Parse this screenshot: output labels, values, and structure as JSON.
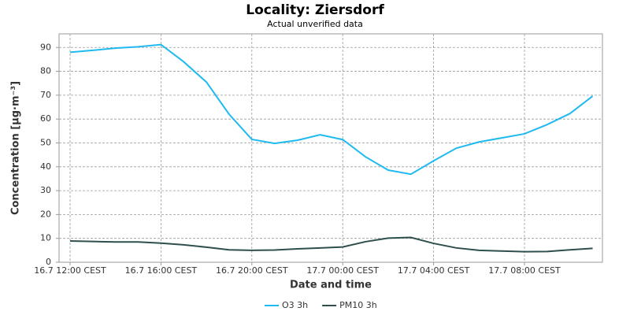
{
  "chart_data": {
    "type": "line",
    "title": "Locality: Ziersdorf",
    "subtitle": "Actual unverified data",
    "x_label": "Date and time",
    "y_label": "Concentration [µg·m⁻³]",
    "categories": [
      "16.7 12:00 CEST",
      null,
      null,
      null,
      "16.7 16:00 CEST",
      null,
      null,
      null,
      "16.7 20:00 CEST",
      null,
      null,
      null,
      "17.7 00:00 CEST",
      null,
      null,
      null,
      "17.7 04:00 CEST",
      null,
      null,
      null,
      "17.7 08:00 CEST",
      null,
      null,
      null
    ],
    "series": [
      {
        "name": "O3 3h",
        "color": "#1fbaf0",
        "values": [
          88,
          88.8,
          89.7,
          90.3,
          91.2,
          84,
          75.5,
          62,
          51.5,
          49.8,
          51.1,
          53.4,
          51.4,
          44.2,
          38.6,
          36.9,
          42.5,
          47.8,
          50.4,
          52.1,
          53.8,
          57.7,
          62.3,
          69.6
        ]
      },
      {
        "name": "PM10 3h",
        "color": "#2f4f4f",
        "values": [
          8.9,
          8.7,
          8.5,
          8.5,
          8,
          7.3,
          6.3,
          5.2,
          5,
          5.1,
          5.6,
          6,
          6.4,
          8.6,
          10.1,
          10.4,
          7.9,
          6,
          5,
          4.7,
          4.4,
          4.5,
          5.2,
          5.8
        ]
      }
    ],
    "ylim": [
      0,
      95.7
    ],
    "yticks": [
      0,
      10,
      20,
      30,
      40,
      50,
      60,
      70,
      80,
      90
    ],
    "grid": true,
    "legend": "bottom"
  }
}
